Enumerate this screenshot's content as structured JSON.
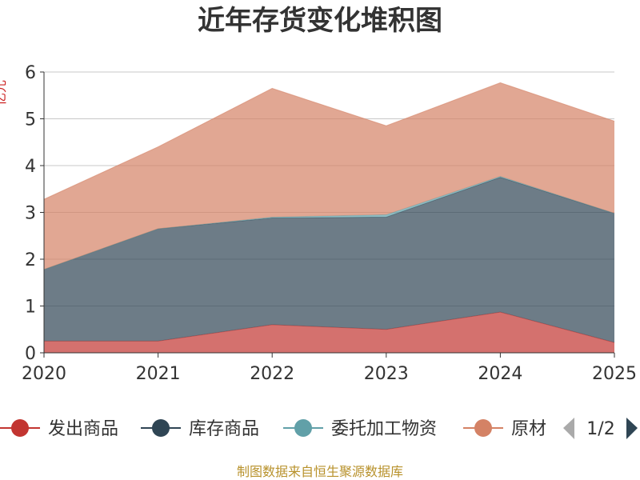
{
  "chart_data": {
    "type": "area",
    "title": "近年存货变化堆积图",
    "ylabel": "亿元",
    "x": [
      "2020",
      "2021",
      "2022",
      "2023",
      "2024",
      "2025"
    ],
    "ylim": [
      0,
      6
    ],
    "yticks": [
      0,
      1,
      2,
      3,
      4,
      5,
      6
    ],
    "stacked": true,
    "grid": true,
    "legend_position": "bottom",
    "series": [
      {
        "name": "发出商品",
        "color": "#c23531",
        "values": [
          0.25,
          0.25,
          0.6,
          0.5,
          0.87,
          0.22
        ]
      },
      {
        "name": "库存商品",
        "color": "#2f4554",
        "values": [
          1.53,
          2.4,
          2.28,
          2.4,
          2.88,
          2.76
        ]
      },
      {
        "name": "委托加工物资",
        "color": "#61a0a8",
        "values": [
          0.0,
          0.0,
          0.02,
          0.05,
          0.02,
          0.0
        ]
      },
      {
        "name": "原材",
        "color": "#d48265",
        "values": [
          1.5,
          1.75,
          2.75,
          1.9,
          2.0,
          1.97
        ]
      }
    ]
  },
  "legend": {
    "page_indicator": "1/2"
  },
  "source": "制图数据来自恒生聚源数据库"
}
